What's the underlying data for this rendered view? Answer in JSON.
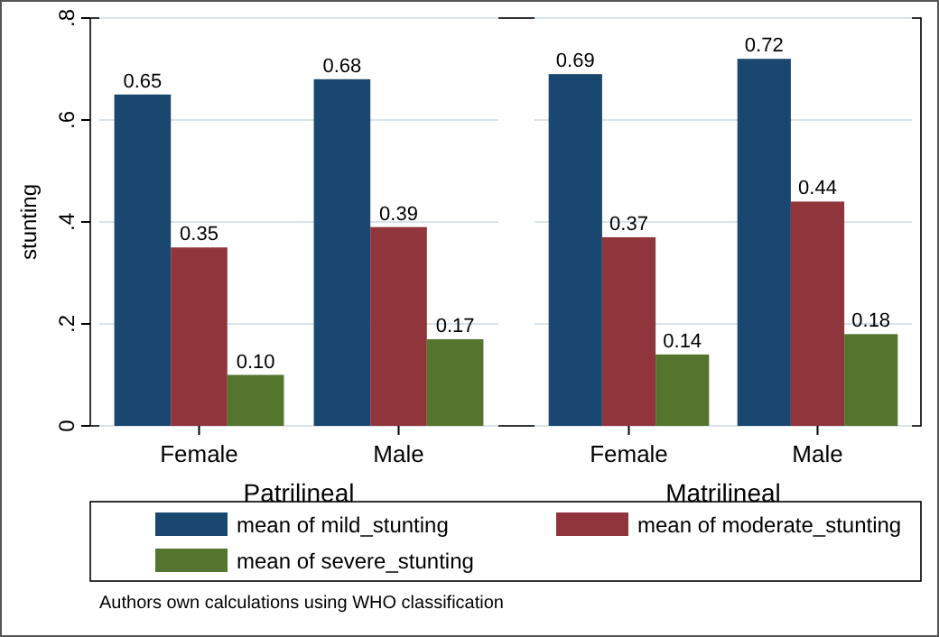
{
  "chart_data": [
    {
      "type": "bar",
      "ylabel": "stunting",
      "xlabel": "Patrilineal",
      "categories": [
        "Female",
        "Male"
      ],
      "series": [
        {
          "name": "mean of mild_stunting",
          "color": "#1a476f",
          "values": [
            0.65,
            0.68
          ],
          "value_labels": [
            "0.65",
            "0.68"
          ]
        },
        {
          "name": "mean of moderate_stunting",
          "color": "#90353b",
          "values": [
            0.35,
            0.39
          ],
          "value_labels": [
            "0.35",
            "0.39"
          ]
        },
        {
          "name": "mean of severe_stunting",
          "color": "#55752f",
          "values": [
            0.1,
            0.17
          ],
          "value_labels": [
            "0.10",
            "0.17"
          ]
        }
      ],
      "ylim": [
        0,
        0.8
      ],
      "yticks": [
        0,
        {
          "value": 0.2,
          "label": ".2"
        },
        {
          "value": 0.4,
          "label": ".4"
        },
        {
          "value": 0.6,
          "label": ".6"
        },
        {
          "value": 0.8,
          "label": ".8"
        }
      ],
      "grid": "y",
      "legend": "bottom",
      "annotations": [
        "Authors own calculations using WHO classification"
      ]
    },
    {
      "type": "bar",
      "xlabel": "Matrilineal",
      "categories": [
        "Female",
        "Male"
      ],
      "series": [
        {
          "color": "#1a476f",
          "values": [
            0.69,
            0.72
          ],
          "value_labels": [
            "0.69",
            "0.72"
          ]
        },
        {
          "color": "#90353b",
          "values": [
            0.37,
            0.44
          ],
          "value_labels": [
            "0.37",
            "0.44"
          ]
        },
        {
          "color": "#55752f",
          "values": [
            0.14,
            0.18
          ],
          "value_labels": [
            "0.14",
            "0.18"
          ]
        }
      ],
      "ylim": [
        0,
        0.8
      ],
      "yticks": [
        {
          "value": 0,
          "label": null
        },
        {
          "value": 0.2,
          "label": null
        },
        {
          "value": 0.4,
          "label": null
        },
        {
          "value": 0.6,
          "label": null
        },
        {
          "value": 0.8,
          "label": null
        }
      ],
      "grid": "y",
      "tick_labels": "x"
    }
  ]
}
